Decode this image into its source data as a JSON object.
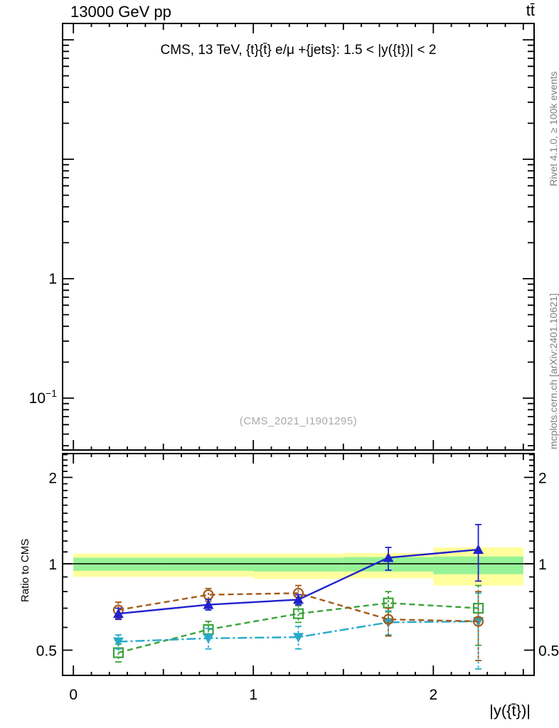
{
  "header": {
    "beam": "13000 GeV pp",
    "process": "tt̄"
  },
  "watermarks": {
    "rivet": "Rivet 4.1.0, ≥ 100k events",
    "mcplots": "mcplots.cern.ch [arXiv:2401.10621]",
    "analysis": "(CMS_2021_I1901295)"
  },
  "main_panel": {
    "title": "CMS, 13 TeV, {t}{t̄} e/μ +{jets}: 1.5 < |y({t})| < 2"
  },
  "ratio_panel": {
    "ylabel": "Ratio to CMS"
  },
  "xaxis_label": "|y({t̄})|",
  "chart_data": {
    "type": "line",
    "title": "CMS, 13 TeV, {t}{t̄} e/μ +{jets}: 1.5 < |y({t})| < 2",
    "xlabel": "|y({t̄})|",
    "ylabel_main": "",
    "ylabel_ratio": "Ratio to CMS",
    "grid": false,
    "legend": "none",
    "xlim": [
      -0.06,
      2.56
    ],
    "xaxis": {
      "ticks": [
        {
          "v": 0,
          "label": "0"
        },
        {
          "v": 1,
          "label": "1"
        },
        {
          "v": 2,
          "label": "2"
        }
      ],
      "minor_step": 0.1,
      "medium_step": 0.5
    },
    "main_yaxis": {
      "scale": "log",
      "range": [
        0.037,
        137
      ],
      "ticks": [
        {
          "v": 1,
          "label": "1"
        },
        {
          "v": 0.1,
          "label": "10",
          "sup": "−1"
        }
      ]
    },
    "ratio_yaxis": {
      "scale": "log",
      "range": [
        0.41,
        2.42
      ],
      "ticks": [
        {
          "v": 2,
          "label": "2"
        },
        {
          "v": 1,
          "label": "1"
        },
        {
          "v": 0.5,
          "label": "0.5"
        }
      ],
      "minor_step": 0.1
    },
    "reference_line": 1.0,
    "band_colors": {
      "yellow": "#ffff9e",
      "green": "#96f296"
    },
    "bands": [
      {
        "x0": 0.0,
        "x1": 0.5,
        "yellow": [
          0.9,
          1.085
        ],
        "green": [
          0.945,
          1.05
        ]
      },
      {
        "x0": 0.5,
        "x1": 1.0,
        "yellow": [
          0.9,
          1.085
        ],
        "green": [
          0.945,
          1.05
        ]
      },
      {
        "x0": 1.0,
        "x1": 1.5,
        "yellow": [
          0.885,
          1.085
        ],
        "green": [
          0.94,
          1.05
        ]
      },
      {
        "x0": 1.5,
        "x1": 2.0,
        "yellow": [
          0.89,
          1.09
        ],
        "green": [
          0.94,
          1.055
        ]
      },
      {
        "x0": 2.0,
        "x1": 2.5,
        "yellow": [
          0.84,
          1.14
        ],
        "green": [
          0.92,
          1.06
        ]
      }
    ],
    "x": [
      0.25,
      0.75,
      1.25,
      1.75,
      2.25
    ],
    "series": [
      {
        "name": "mc-green-open-square-dashed",
        "color": "#3aa33a",
        "linestyle": "dashed",
        "marker": "square",
        "fill": "open",
        "ratio_values": [
          0.49,
          0.59,
          0.67,
          0.73,
          0.7
        ],
        "err_up": [
          0.035,
          0.04,
          0.045,
          0.07,
          0.14
        ],
        "err_down": [
          0.035,
          0.04,
          0.045,
          0.05,
          0.18
        ]
      },
      {
        "name": "mc-cyan-filled-triangle-down-dashdot",
        "color": "#27aac9",
        "linestyle": "dashdot",
        "marker": "triangle-down",
        "fill": "filled",
        "ratio_values": [
          0.535,
          0.55,
          0.555,
          0.625,
          0.63
        ],
        "err_up": [
          0.03,
          0.045,
          0.05,
          0.06,
          0.16
        ],
        "err_down": [
          0.03,
          0.045,
          0.05,
          0.06,
          0.2
        ]
      },
      {
        "name": "mc-brown-open-circle-dashed",
        "color": "#a35a1a",
        "linestyle": "dashed",
        "marker": "circle",
        "fill": "open",
        "ratio_values": [
          0.69,
          0.78,
          0.79,
          0.64,
          0.63
        ],
        "err_up": [
          0.045,
          0.04,
          0.05,
          0.06,
          0.17
        ],
        "err_down": [
          0.045,
          0.04,
          0.05,
          0.08,
          0.17
        ]
      },
      {
        "name": "mc-blue-filled-triangle-up-solid",
        "color": "#2121cd",
        "linestyle": "solid",
        "marker": "triangle-up",
        "fill": "filled",
        "ratio_values": [
          0.67,
          0.72,
          0.75,
          1.05,
          1.12
        ],
        "err_up": [
          0.03,
          0.03,
          0.03,
          0.09,
          0.25
        ],
        "err_down": [
          0.03,
          0.03,
          0.03,
          0.1,
          0.25
        ]
      }
    ]
  }
}
